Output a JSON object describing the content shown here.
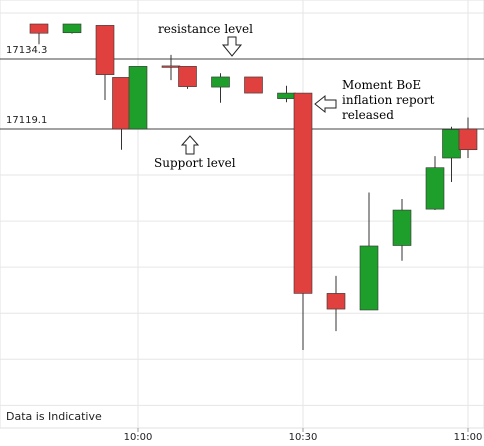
{
  "chart_data": {
    "type": "candlestick",
    "footnote": "Data is Indicative",
    "y_ticks": [
      17134.3,
      17119.1
    ],
    "x_ticks": [
      {
        "label": "10:00",
        "time": "10:00"
      },
      {
        "label": "10:30",
        "time": "10:30"
      },
      {
        "label": "11:00",
        "time": "11:00"
      }
    ],
    "colors": {
      "up": "#1e9e2a",
      "down": "#e0403e",
      "wick": "#333333",
      "grid": "#e6e6e6",
      "level": "#444444"
    },
    "candles": [
      {
        "time": "09:42",
        "open": 17141.9,
        "close": 17139.9,
        "high": 17141.9,
        "low": 17137.5
      },
      {
        "time": "09:48",
        "open": 17140.0,
        "close": 17141.9,
        "high": 17141.9,
        "low": 17139.8
      },
      {
        "time": "09:54",
        "open": 17141.6,
        "close": 17130.9,
        "high": 17141.6,
        "low": 17125.4
      },
      {
        "time": "09:57",
        "open": 17130.3,
        "close": 17119.1,
        "high": 17130.3,
        "low": 17114.6
      },
      {
        "time": "10:00",
        "open": 17119.1,
        "close": 17132.7,
        "high": 17132.7,
        "low": 17119.1
      },
      {
        "time": "10:06",
        "open": 17132.8,
        "close": 17132.7,
        "high": 17135.2,
        "low": 17129.7
      },
      {
        "time": "10:09",
        "open": 17132.7,
        "close": 17128.3,
        "high": 17132.7,
        "low": 17127.8
      },
      {
        "time": "10:15",
        "open": 17128.2,
        "close": 17130.4,
        "high": 17131.2,
        "low": 17124.8
      },
      {
        "time": "10:21",
        "open": 17130.4,
        "close": 17126.9,
        "high": 17130.4,
        "low": 17126.9
      },
      {
        "time": "10:27",
        "open": 17125.7,
        "close": 17126.9,
        "high": 17128.5,
        "low": 17124.9
      },
      {
        "time": "10:30",
        "open": 17126.9,
        "close": 17083.4,
        "high": 17126.9,
        "low": 17071.1
      },
      {
        "time": "10:36",
        "open": 17083.4,
        "close": 17080.0,
        "high": 17087.2,
        "low": 17075.2
      },
      {
        "time": "10:42",
        "open": 17079.8,
        "close": 17093.7,
        "high": 17105.3,
        "low": 17079.8
      },
      {
        "time": "10:48",
        "open": 17093.8,
        "close": 17101.5,
        "high": 17103.9,
        "low": 17090.5
      },
      {
        "time": "10:54",
        "open": 17101.7,
        "close": 17110.7,
        "high": 17113.2,
        "low": 17101.5
      },
      {
        "time": "10:57",
        "open": 17112.8,
        "close": 17119.0,
        "high": 17119.6,
        "low": 17107.6
      },
      {
        "time": "11:00",
        "open": 17119.1,
        "close": 17114.6,
        "high": 17121.6,
        "low": 17112.8
      }
    ],
    "annotations": {
      "resistance": {
        "text": "resistance level",
        "value": 17134.3
      },
      "support": {
        "text": "Support level",
        "value": 17119.1
      },
      "boe_lines": [
        "Moment BoE",
        "inflation report",
        "released"
      ]
    }
  }
}
